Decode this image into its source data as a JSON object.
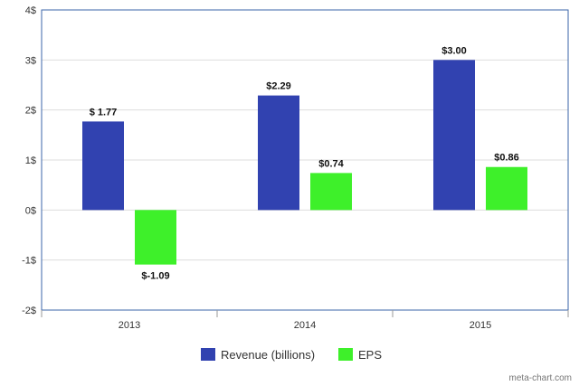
{
  "chart_data": {
    "type": "bar",
    "categories": [
      "2013",
      "2014",
      "2015"
    ],
    "series": [
      {
        "name": "Revenue (billions)",
        "values": [
          1.77,
          2.29,
          3.0
        ],
        "labels": [
          "$ 1.77",
          "$2.29",
          "$3.00"
        ],
        "color": "#3142b0"
      },
      {
        "name": "EPS",
        "values": [
          -1.09,
          0.74,
          0.86
        ],
        "labels": [
          "$-1.09",
          "$0.74",
          "$0.86"
        ],
        "color": "#3ef02a"
      }
    ],
    "y_ticks": [
      {
        "value": 4,
        "label": "4$"
      },
      {
        "value": 3,
        "label": "3$"
      },
      {
        "value": 2,
        "label": "2$"
      },
      {
        "value": 1,
        "label": "1$"
      },
      {
        "value": 0,
        "label": "0$"
      },
      {
        "value": -1,
        "label": "-1$"
      },
      {
        "value": -2,
        "label": "-2$"
      }
    ],
    "ylim": [
      -2,
      4
    ],
    "grid": true,
    "legend_position": "bottom-center"
  },
  "credit": "meta-chart.com",
  "colors": {
    "plot_border": "#3b66a8",
    "grid": "#dddddd"
  }
}
